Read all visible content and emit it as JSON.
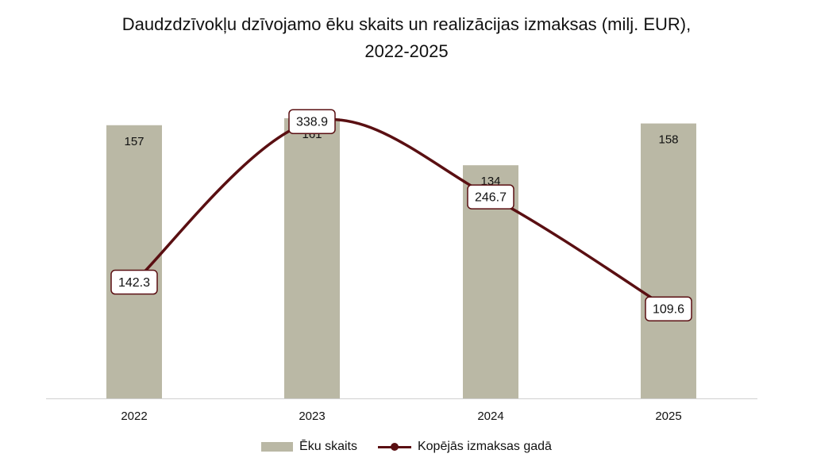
{
  "chart_data": {
    "type": "bar",
    "title_lines": [
      "Daudzdzīvokļu dzīvojamo ēku skaits un realizācijas izmaksas (milj. EUR),",
      "2022-2025"
    ],
    "categories": [
      "2022",
      "2023",
      "2024",
      "2025"
    ],
    "series": [
      {
        "name": "Ēku skaits",
        "type": "bar",
        "values": [
          157,
          161,
          134,
          158
        ],
        "color": "#bab8a5"
      },
      {
        "name": "Kopējās izmaksas gadā",
        "type": "line",
        "smooth": true,
        "values": [
          142.3,
          338.9,
          246.7,
          109.6
        ],
        "color": "#5a0f12"
      }
    ],
    "value_labels": {
      "bars": [
        "157",
        "161",
        "134",
        "158"
      ],
      "line": [
        "142.3",
        "338.9",
        "246.7",
        "109.6"
      ]
    },
    "bar_axis_range": [
      0,
      161
    ],
    "line_axis_range": [
      0,
      343
    ],
    "grid": false,
    "legend_position": "bottom"
  }
}
